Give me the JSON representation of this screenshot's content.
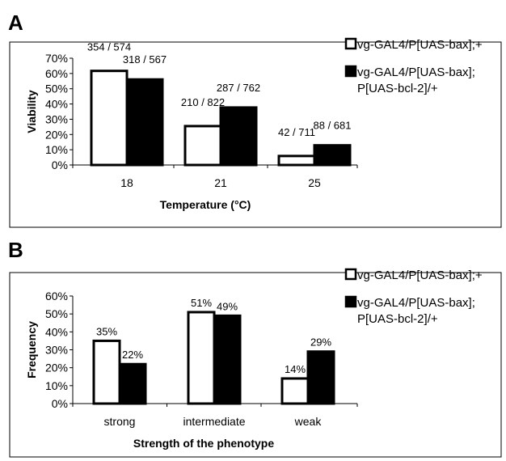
{
  "panels": [
    {
      "letter": "A",
      "chart_data": {
        "type": "bar",
        "categories": [
          "18",
          "21",
          "25"
        ],
        "series": [
          {
            "name": "vg-GAL4/P[UAS-bax];+",
            "values": [
              61.7,
              25.5,
              5.9
            ],
            "labels": [
              "354 / 574",
              "210 / 822",
              "42 / 711"
            ],
            "fill": "#ffffff"
          },
          {
            "name": "vg-GAL4/P[UAS-bax]; P[UAS-bcl-2]/+",
            "values": [
              56.1,
              37.7,
              12.9
            ],
            "labels": [
              "318 / 567",
              "287 / 762",
              "88 / 681"
            ],
            "fill": "#000000"
          }
        ],
        "legend_lines": [
          [
            "vg-GAL4/P[UAS-bax];+"
          ],
          [
            "vg-GAL4/P[UAS-bax];",
            "P[UAS-bcl-2]/+"
          ]
        ],
        "yticks": [
          "0%",
          "10%",
          "20%",
          "30%",
          "40%",
          "50%",
          "60%",
          "70%"
        ],
        "ylim": [
          0,
          70
        ],
        "xlabel": "Temperature (°C)",
        "ylabel": "Viability",
        "legend_position": "right"
      }
    },
    {
      "letter": "B",
      "chart_data": {
        "type": "bar",
        "categories": [
          "strong",
          "intermediate",
          "weak"
        ],
        "series": [
          {
            "name": "vg-GAL4/P[UAS-bax];+",
            "values": [
              35,
              51,
              14
            ],
            "labels": [
              "35%",
              "51%",
              "14%"
            ],
            "fill": "#ffffff"
          },
          {
            "name": "vg-GAL4/P[UAS-bax]; P[UAS-bcl-2]/+",
            "values": [
              22,
              49,
              29
            ],
            "labels": [
              "22%",
              "49%",
              "29%"
            ],
            "fill": "#000000"
          }
        ],
        "legend_lines": [
          [
            "vg-GAL4/P[UAS-bax];+"
          ],
          [
            "vg-GAL4/P[UAS-bax];",
            "P[UAS-bcl-2]/+"
          ]
        ],
        "yticks": [
          "0%",
          "10%",
          "20%",
          "30%",
          "40%",
          "50%",
          "60%"
        ],
        "ylim": [
          0,
          60
        ],
        "xlabel": "Strength of the phenotype",
        "ylabel": "Frequency",
        "legend_position": "right"
      }
    }
  ]
}
